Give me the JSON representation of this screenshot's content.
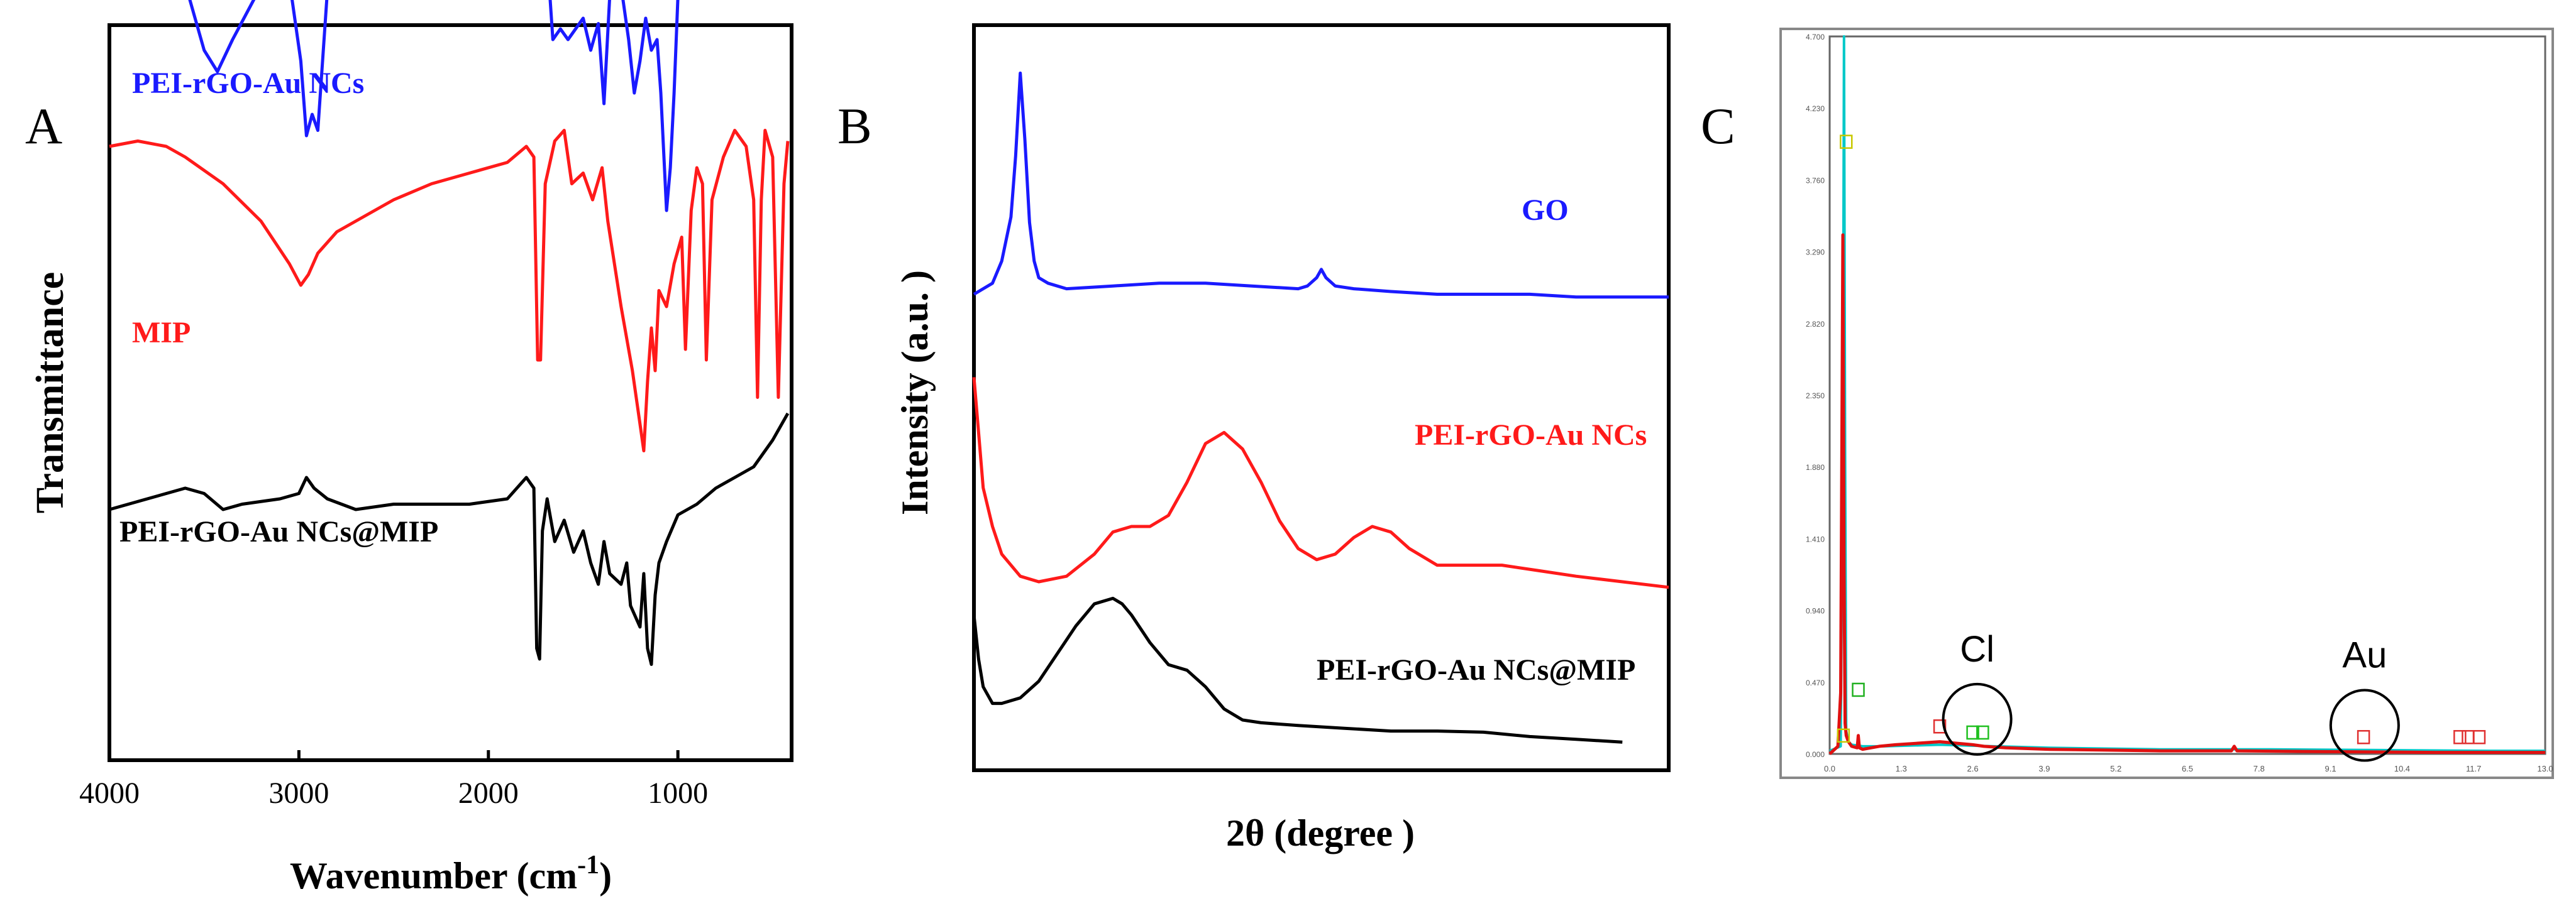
{
  "chart_data": [
    {
      "panel": "A",
      "type": "line",
      "xlabel": "Wavenumber (cm",
      "xlabel_superscript": "-1",
      "xlabel_close": ")",
      "ylabel": "Transmittance",
      "xlim": [
        4000,
        400
      ],
      "x_reversed": true,
      "x_ticks": [
        4000,
        3000,
        2000,
        1000
      ],
      "series": [
        {
          "name": "PEI-rGO-Au NCs",
          "color": "#1a1aff",
          "x": [
            4000,
            3900,
            3800,
            3750,
            3650,
            3580,
            3500,
            3430,
            3350,
            3200,
            3050,
            2990,
            2960,
            2930,
            2900,
            2850,
            2800,
            2700,
            2500,
            2300,
            2100,
            1900,
            1800,
            1750,
            1700,
            1660,
            1620,
            1580,
            1500,
            1460,
            1420,
            1390,
            1360,
            1300,
            1260,
            1230,
            1200,
            1170,
            1140,
            1110,
            1090,
            1060,
            1040,
            1020,
            1000,
            960,
            900,
            870,
            800,
            700,
            600,
            500,
            420
          ],
          "y": [
            0.87,
            0.88,
            0.92,
            0.93,
            0.89,
            0.8,
            0.7,
            0.66,
            0.72,
            0.82,
            0.83,
            0.68,
            0.54,
            0.58,
            0.55,
            0.81,
            0.86,
            0.885,
            0.89,
            0.895,
            0.9,
            0.91,
            0.95,
            0.96,
            0.93,
            0.72,
            0.74,
            0.72,
            0.76,
            0.7,
            0.75,
            0.6,
            0.8,
            0.82,
            0.72,
            0.62,
            0.68,
            0.76,
            0.7,
            0.72,
            0.62,
            0.4,
            0.48,
            0.62,
            0.8,
            0.8,
            0.85,
            0.9,
            0.88,
            0.87,
            0.86,
            0.85,
            0.84
          ]
        },
        {
          "name": "MIP",
          "color": "#ff1a1a",
          "x": [
            4000,
            3850,
            3700,
            3600,
            3400,
            3200,
            3050,
            2990,
            2950,
            2900,
            2800,
            2600,
            2500,
            2300,
            2100,
            1900,
            1800,
            1760,
            1740,
            1725,
            1700,
            1650,
            1600,
            1560,
            1500,
            1450,
            1400,
            1370,
            1300,
            1260,
            1240,
            1200,
            1180,
            1160,
            1140,
            1120,
            1100,
            1060,
            1020,
            980,
            960,
            930,
            900,
            870,
            850,
            820,
            760,
            700,
            640,
            600,
            580,
            560,
            540,
            500,
            470,
            440,
            420
          ],
          "y": [
            0.52,
            0.53,
            0.52,
            0.5,
            0.45,
            0.38,
            0.3,
            0.26,
            0.28,
            0.32,
            0.36,
            0.4,
            0.42,
            0.45,
            0.47,
            0.49,
            0.52,
            0.5,
            0.12,
            0.12,
            0.45,
            0.53,
            0.55,
            0.45,
            0.47,
            0.42,
            0.48,
            0.38,
            0.22,
            0.14,
            0.1,
            0.0,
            -0.05,
            0.08,
            0.18,
            0.1,
            0.25,
            0.22,
            0.3,
            0.35,
            0.14,
            0.4,
            0.48,
            0.45,
            0.12,
            0.42,
            0.5,
            0.55,
            0.52,
            0.42,
            0.05,
            0.42,
            0.55,
            0.5,
            0.05,
            0.45,
            0.53
          ]
        },
        {
          "name": "PEI-rGO-Au NCs@MIP",
          "color": "#000000",
          "x": [
            4000,
            3800,
            3600,
            3500,
            3400,
            3300,
            3100,
            3000,
            2960,
            2920,
            2850,
            2700,
            2500,
            2300,
            2100,
            1900,
            1800,
            1760,
            1745,
            1730,
            1715,
            1690,
            1650,
            1600,
            1550,
            1500,
            1460,
            1420,
            1390,
            1360,
            1300,
            1270,
            1250,
            1200,
            1180,
            1160,
            1140,
            1120,
            1100,
            1060,
            1000,
            900,
            800,
            700,
            600,
            500,
            420
          ],
          "y": [
            -0.16,
            -0.14,
            -0.12,
            -0.13,
            -0.16,
            -0.15,
            -0.14,
            -0.13,
            -0.1,
            -0.12,
            -0.14,
            -0.16,
            -0.15,
            -0.15,
            -0.15,
            -0.14,
            -0.1,
            -0.12,
            -0.42,
            -0.44,
            -0.2,
            -0.14,
            -0.22,
            -0.18,
            -0.24,
            -0.2,
            -0.26,
            -0.3,
            -0.22,
            -0.28,
            -0.3,
            -0.26,
            -0.34,
            -0.38,
            -0.28,
            -0.42,
            -0.45,
            -0.32,
            -0.26,
            -0.22,
            -0.17,
            -0.15,
            -0.12,
            -0.1,
            -0.08,
            -0.03,
            0.02
          ]
        }
      ],
      "legend_placement": "inline-labels"
    },
    {
      "panel": "B",
      "type": "line",
      "xlabel": "2θ (degree )",
      "ylabel": "Intensity (a.u. )",
      "x_ticks_shown": false,
      "y_ticks_shown": false,
      "series": [
        {
          "name": "GO",
          "color": "#1a1aff",
          "x": [
            5,
            6,
            7,
            8,
            9,
            9.5,
            10,
            10.5,
            11,
            11.5,
            12,
            13,
            15,
            20,
            25,
            30,
            35,
            40,
            41,
            42,
            42.5,
            43,
            44,
            46,
            50,
            55,
            60,
            65,
            70,
            75,
            80
          ],
          "y": [
            0.8,
            0.81,
            0.82,
            0.86,
            0.94,
            1.05,
            1.2,
            1.08,
            0.93,
            0.86,
            0.83,
            0.82,
            0.81,
            0.815,
            0.82,
            0.82,
            0.815,
            0.81,
            0.815,
            0.83,
            0.845,
            0.83,
            0.815,
            0.81,
            0.805,
            0.8,
            0.8,
            0.8,
            0.795,
            0.795,
            0.795
          ]
        },
        {
          "name": "PEI-rGO-Au NCs",
          "color": "#ff1a1a",
          "x": [
            5,
            5.5,
            6,
            7,
            8,
            10,
            12,
            15,
            18,
            20,
            22,
            24,
            26,
            28,
            30,
            32,
            34,
            36,
            38,
            40,
            42,
            44,
            46,
            48,
            50,
            52,
            55,
            58,
            62,
            66,
            70,
            75,
            80
          ],
          "y": [
            0.65,
            0.55,
            0.45,
            0.38,
            0.33,
            0.29,
            0.28,
            0.29,
            0.33,
            0.37,
            0.38,
            0.38,
            0.4,
            0.46,
            0.53,
            0.55,
            0.52,
            0.46,
            0.39,
            0.34,
            0.32,
            0.33,
            0.36,
            0.38,
            0.37,
            0.34,
            0.31,
            0.31,
            0.31,
            0.3,
            0.29,
            0.28,
            0.27
          ]
        },
        {
          "name": "PEI-rGO-Au NCs@MIP",
          "color": "#000000",
          "x": [
            5,
            5.5,
            6,
            7,
            8,
            10,
            12,
            14,
            16,
            18,
            20,
            21,
            22,
            24,
            26,
            28,
            30,
            32,
            34,
            36,
            40,
            45,
            50,
            55,
            60,
            65,
            70,
            75
          ],
          "y": [
            0.22,
            0.14,
            0.09,
            0.06,
            0.06,
            0.07,
            0.1,
            0.15,
            0.2,
            0.24,
            0.25,
            0.24,
            0.22,
            0.17,
            0.13,
            0.12,
            0.09,
            0.05,
            0.03,
            0.025,
            0.02,
            0.015,
            0.01,
            0.01,
            0.008,
            0.0,
            -0.005,
            -0.01
          ]
        }
      ],
      "legend_placement": "inline-labels"
    },
    {
      "panel": "C",
      "type": "line",
      "subtype": "EDX spectrum",
      "x_tick_labels": [
        "0.0",
        "1.3",
        "2.6",
        "3.9",
        "5.2",
        "6.5",
        "7.8",
        "9.1",
        "10.4",
        "11.7",
        "13.0"
      ],
      "y_tick_labels": [
        "0.000",
        "0.470",
        "0.940",
        "1.410",
        "1.880",
        "2.350",
        "2.820",
        "3.290",
        "3.760",
        "4.230",
        "4.700"
      ],
      "xlim": [
        0,
        13.0
      ],
      "ylim": [
        0,
        4.7
      ],
      "series": [
        {
          "color": "#00c8c8",
          "x": [
            0.0,
            0.2,
            0.24,
            0.26,
            0.28,
            0.3,
            0.34,
            0.4,
            0.6,
            1.0,
            2.0,
            4.0,
            6.0,
            8.0,
            10.0,
            12.0,
            13.0
          ],
          "y": [
            0.02,
            0.05,
            2.0,
            4.7,
            2.0,
            0.15,
            0.08,
            0.06,
            0.05,
            0.05,
            0.06,
            0.04,
            0.03,
            0.03,
            0.025,
            0.02,
            0.02
          ]
        },
        {
          "color": "#e01010",
          "x": [
            0.0,
            0.15,
            0.2,
            0.24,
            0.26,
            0.28,
            0.3,
            0.34,
            0.4,
            0.5,
            0.52,
            0.54,
            0.6,
            0.9,
            1.2,
            1.6,
            2.0,
            2.3,
            2.6,
            2.8,
            3.2,
            4.0,
            6.0,
            7.3,
            7.35,
            7.4,
            9.0,
            11.0,
            13.0
          ],
          "y": [
            0.0,
            0.05,
            0.4,
            3.4,
            1.2,
            0.2,
            0.12,
            0.08,
            0.05,
            0.04,
            0.12,
            0.04,
            0.03,
            0.05,
            0.06,
            0.07,
            0.08,
            0.07,
            0.06,
            0.05,
            0.04,
            0.03,
            0.02,
            0.02,
            0.05,
            0.02,
            0.015,
            0.01,
            0.01
          ]
        }
      ],
      "markers": [
        {
          "x": 0.3,
          "y": 4.01,
          "color": "#c8c800"
        },
        {
          "x": 0.25,
          "y": 0.12,
          "color": "#c8c800"
        },
        {
          "x": 0.52,
          "y": 0.42,
          "color": "#20b020"
        },
        {
          "x": 2.0,
          "y": 0.18,
          "color": "#e03030"
        },
        {
          "x": 2.6,
          "y": 0.14,
          "color": "#20c020"
        },
        {
          "x": 2.78,
          "y": 0.14,
          "color": "#20c020"
        },
        {
          "x": 9.7,
          "y": 0.11,
          "color": "#e03030"
        },
        {
          "x": 11.45,
          "y": 0.11,
          "color": "#e03030"
        },
        {
          "x": 11.6,
          "y": 0.11,
          "color": "#e03030"
        },
        {
          "x": 11.8,
          "y": 0.11,
          "color": "#e03030"
        }
      ],
      "annotations": [
        {
          "text": "Cl",
          "x": 2.68,
          "y": 0.26
        },
        {
          "text": "Au",
          "x": 9.72,
          "y": 0.22
        }
      ]
    }
  ],
  "panel_letters": [
    "A",
    "B",
    "C"
  ]
}
